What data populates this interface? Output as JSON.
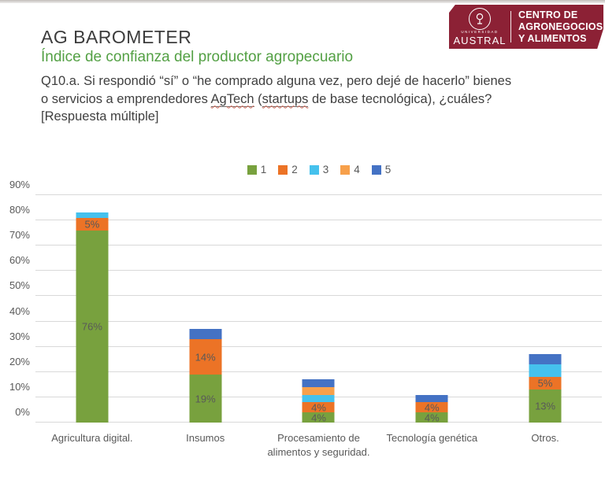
{
  "header": {
    "title": "AG BAROMETER",
    "subtitle": "Índice de confianza del productor agropecuario",
    "question_line1": "Q10.a. Si respondió “sí” o “he comprado alguna vez, pero dejé de hacerlo” bienes",
    "question_line2_pre": "o servicios a emprendedores ",
    "question_word_agtech": "AgTech",
    "question_line2_mid": " (",
    "question_word_startups": "startups",
    "question_line2_post": " de base tecnológica), ¿cuáles?",
    "question_line3": "[Respuesta múltiple]"
  },
  "logo": {
    "banner_color": "#8c2135",
    "university_small": "UNIVERSIDAD",
    "university": "AUSTRAL",
    "center_line1": "CENTRO DE",
    "center_line2": "AGRONEGOCIOS",
    "center_line3": "Y ALIMENTOS"
  },
  "chart_data": {
    "type": "bar",
    "stacked": true,
    "title": "",
    "xlabel": "",
    "ylabel": "",
    "ylim": [
      0,
      90
    ],
    "grid": true,
    "gridline_color": "#d9d9d9",
    "legend_position": "top-center",
    "ytick_labels": [
      "0%",
      "10%",
      "20%",
      "30%",
      "40%",
      "50%",
      "60%",
      "70%",
      "80%",
      "90%"
    ],
    "ytick_values": [
      0,
      10,
      20,
      30,
      40,
      50,
      60,
      70,
      80,
      90
    ],
    "categories": [
      "Agricultura digital.",
      "Insumos",
      "Procesamiento de alimentos y seguridad.",
      "Tecnología genética",
      "Otros."
    ],
    "series": [
      {
        "name": "1",
        "color": "#78a13e",
        "values": [
          76,
          19,
          4,
          4,
          13
        ]
      },
      {
        "name": "2",
        "color": "#ec7326",
        "values": [
          5,
          14,
          4,
          4,
          5
        ]
      },
      {
        "name": "3",
        "color": "#45c1ed",
        "values": [
          2,
          0,
          3,
          0,
          5
        ]
      },
      {
        "name": "4",
        "color": "#f7a04b",
        "values": [
          0,
          0,
          3,
          0,
          0
        ]
      },
      {
        "name": "5",
        "color": "#4472c4",
        "values": [
          0,
          4,
          3,
          3,
          4
        ]
      }
    ],
    "bar_totals": [
      83,
      37,
      17,
      11,
      27
    ],
    "label_series_indexes": [
      0,
      1
    ],
    "label_format": "{v}%",
    "label_color": "#595959"
  }
}
